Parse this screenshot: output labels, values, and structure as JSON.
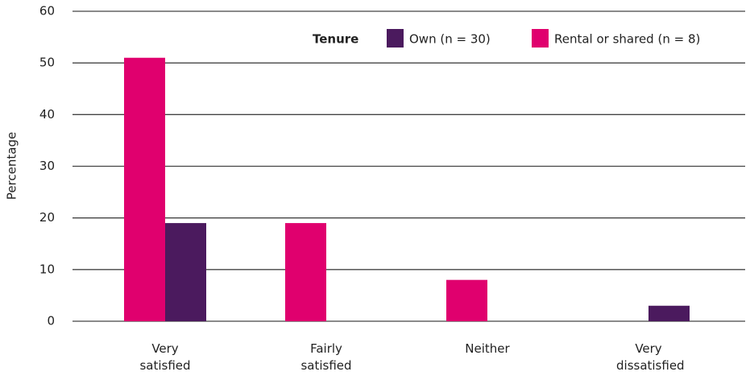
{
  "chart_data": {
    "type": "bar",
    "categories": [
      "Very satisfied",
      "Fairly satisfied",
      "Neither",
      "Very dissatisfied"
    ],
    "series": [
      {
        "name": "Own (n = 30)",
        "color": "#4b1a5e",
        "values": [
          19,
          0,
          0,
          3
        ]
      },
      {
        "name": "Rental or shared  (n = 8)",
        "color": "#e0006e",
        "values": [
          51,
          19,
          8,
          0
        ]
      }
    ],
    "legend_title": "Tenure",
    "ylabel": "Percentage",
    "ylim": [
      0,
      60
    ],
    "yticks": [
      0,
      10,
      20,
      30,
      40,
      50,
      60
    ],
    "grid": true,
    "legend": "top right"
  }
}
